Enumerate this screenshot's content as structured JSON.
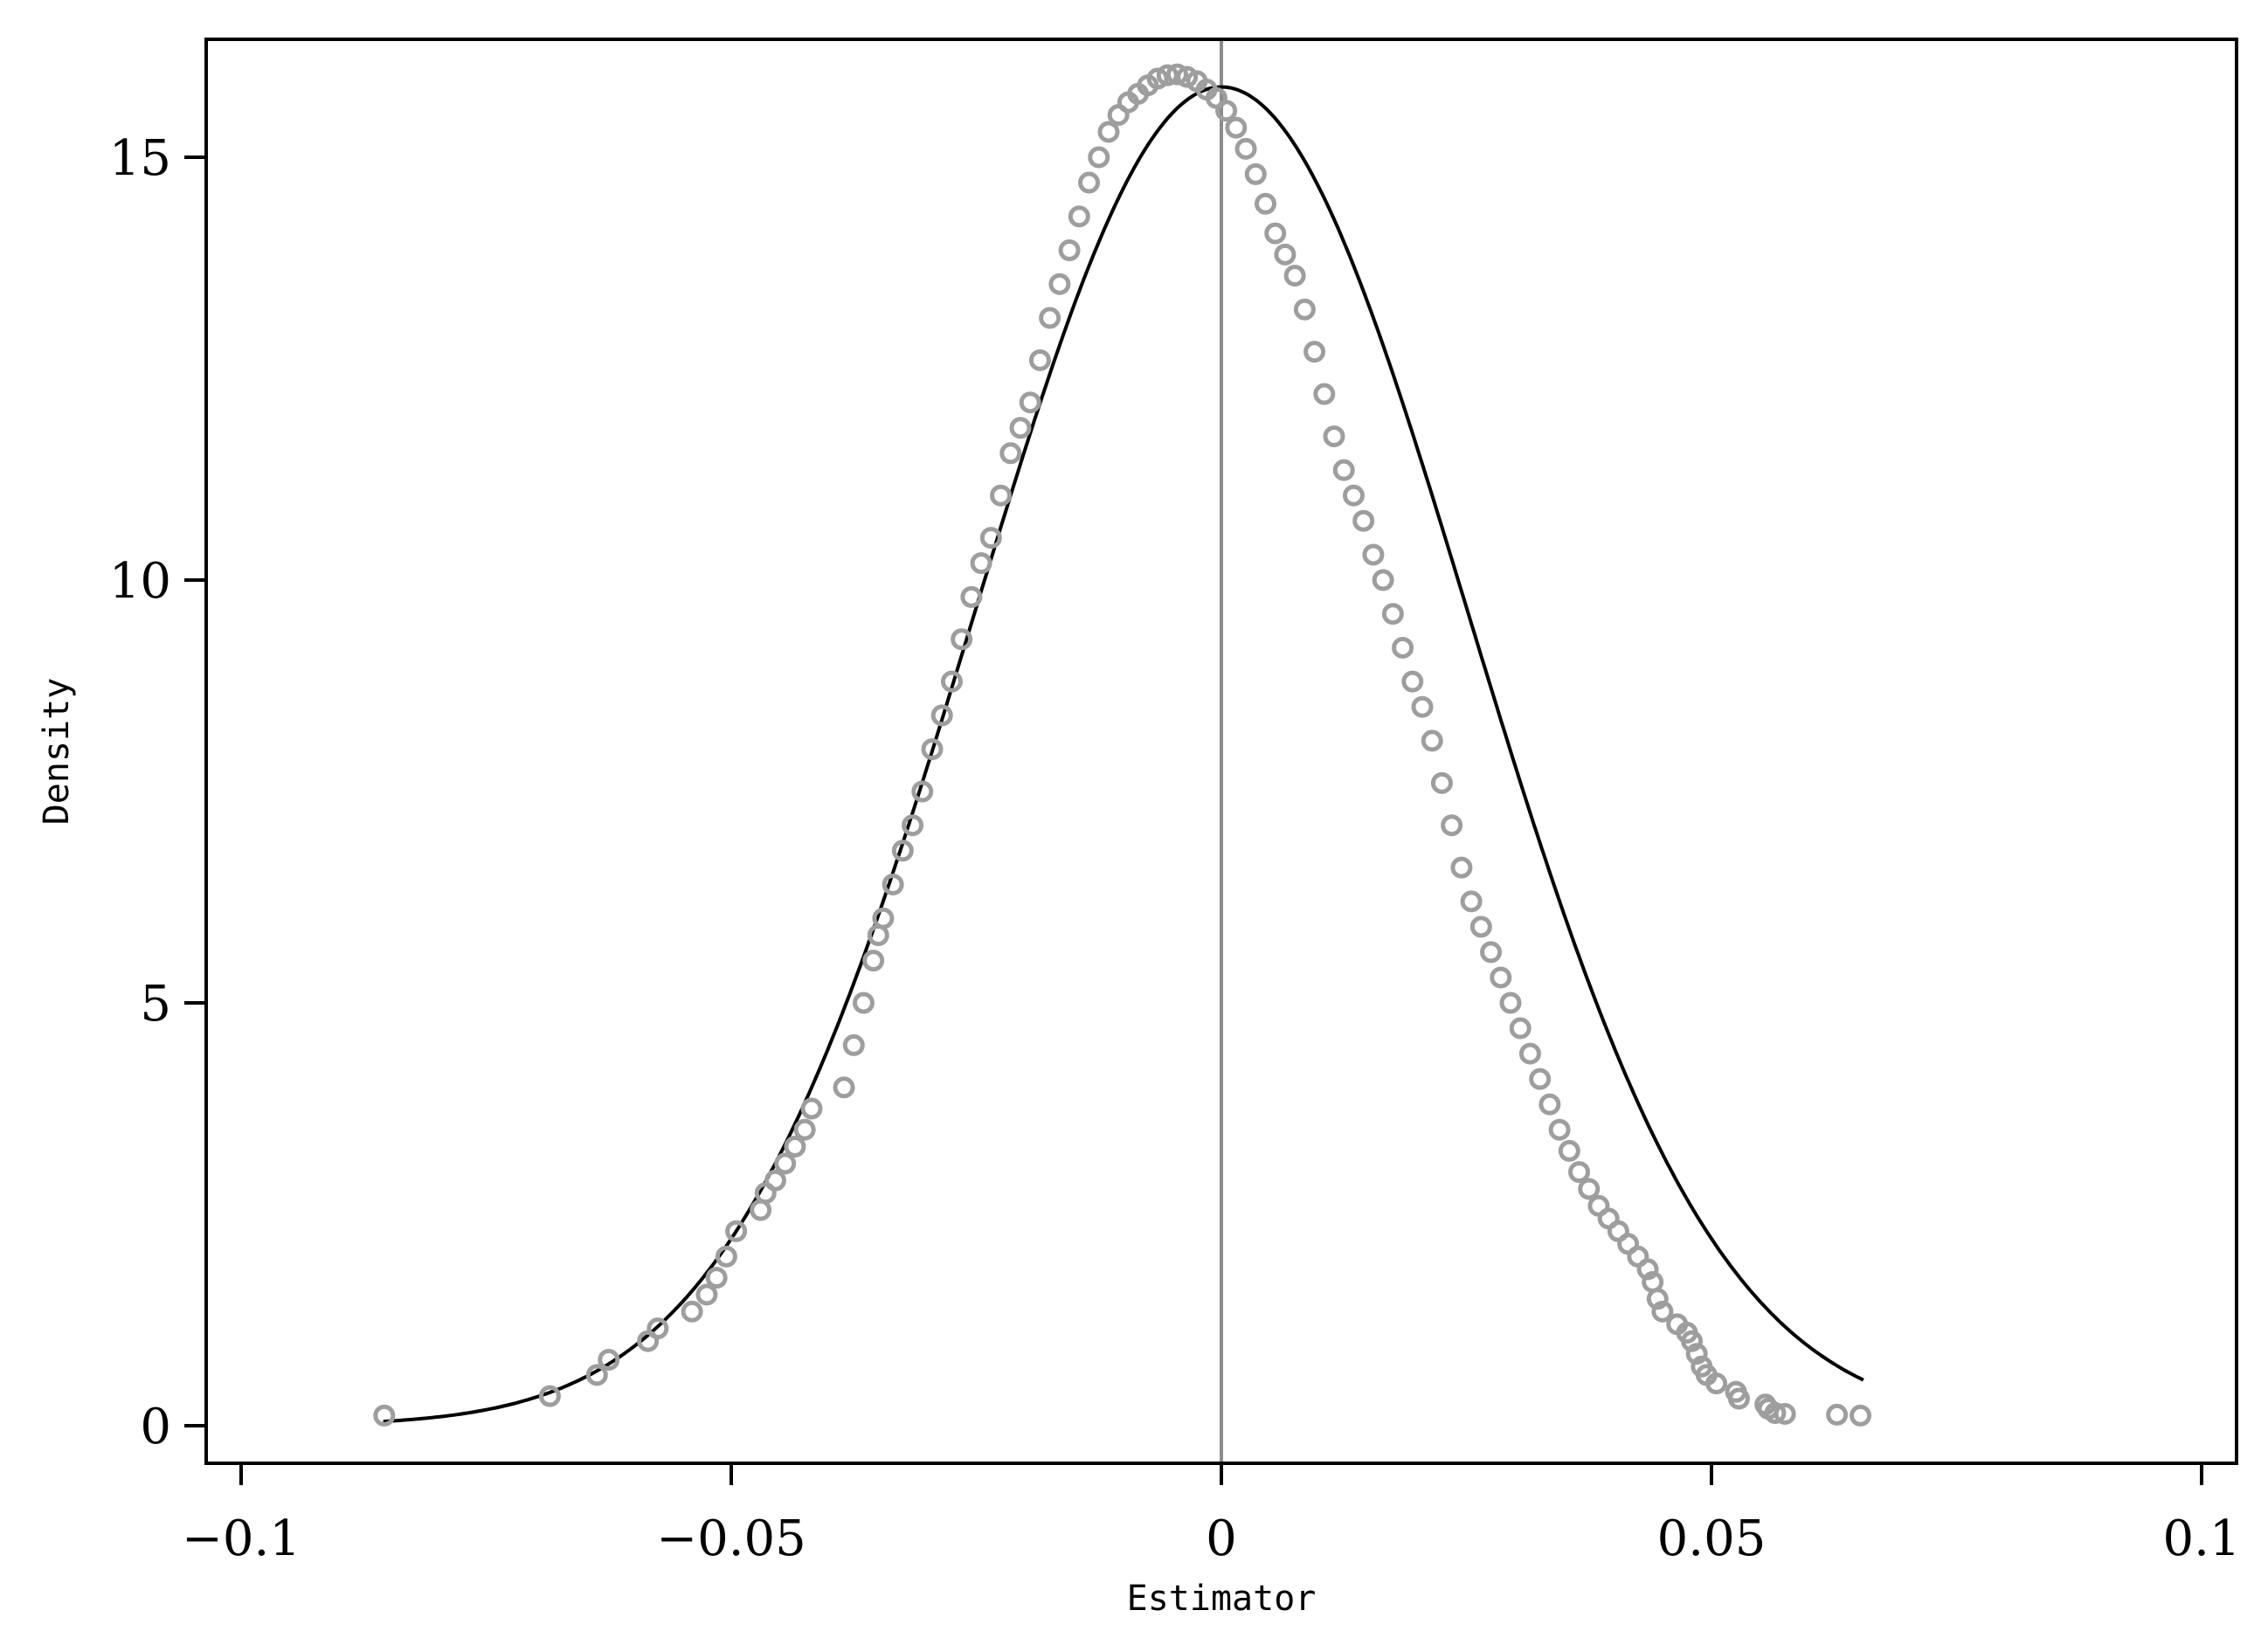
{
  "chart_data": {
    "type": "scatter",
    "xlabel": "Estimator",
    "ylabel": "Density",
    "xlim": [
      -0.1,
      0.1
    ],
    "ylim": [
      0,
      16
    ],
    "x_ticks": [
      -0.1,
      -0.05,
      0,
      0.05,
      0.1
    ],
    "x_tick_labels": [
      "−0.1",
      "−0.05",
      "0",
      "0.05",
      "0.1"
    ],
    "y_ticks": [
      0,
      5,
      10,
      15
    ],
    "y_tick_labels": [
      "0",
      "5",
      "10",
      "15"
    ],
    "reference_line_x": 0,
    "grid": false,
    "legend": "none",
    "colors": {
      "points": "#9e9e9e",
      "curve": "#000000",
      "reference_line": "#8c8c8c",
      "frame": "#000000"
    },
    "normal_curve": {
      "mean": 0,
      "sd": 0.0252,
      "x_range": [
        -0.0855,
        0.0655
      ]
    },
    "series": [
      {
        "type": "scatter",
        "x": [
          -0.0854,
          -0.0685,
          -0.0637,
          -0.0625,
          -0.0585,
          -0.0575,
          -0.054,
          -0.0525,
          -0.0515,
          -0.0505,
          -0.0495,
          -0.047,
          -0.0465,
          -0.0455,
          -0.0445,
          -0.0435,
          -0.0425,
          -0.0418,
          -0.0385,
          -0.0375,
          -0.0365,
          -0.0355,
          -0.035,
          -0.0345,
          -0.0335,
          -0.0325,
          -0.0315,
          -0.0305,
          -0.0295,
          -0.0285,
          -0.0275,
          -0.0265,
          -0.0255,
          -0.0245,
          -0.0235,
          -0.0225,
          -0.0215,
          -0.0205,
          -0.0195,
          -0.0185,
          -0.0175,
          -0.0165,
          -0.0155,
          -0.0145,
          -0.0135,
          -0.0125,
          -0.0115,
          -0.0105,
          -0.0095,
          -0.0085,
          -0.0075,
          -0.0065,
          -0.0055,
          -0.0045,
          -0.0035,
          -0.0025,
          -0.0015,
          -0.0005,
          0.0005,
          0.0015,
          0.0025,
          0.0035,
          0.0045,
          0.0055,
          0.0065,
          0.0075,
          0.0085,
          0.0095,
          0.0105,
          0.0115,
          0.0125,
          0.0135,
          0.0145,
          0.0155,
          0.0165,
          0.0175,
          0.0185,
          0.0195,
          0.0205,
          0.0215,
          0.0225,
          0.0235,
          0.0245,
          0.0255,
          0.0265,
          0.0275,
          0.0285,
          0.0295,
          0.0305,
          0.0315,
          0.0325,
          0.0335,
          0.0345,
          0.0355,
          0.0365,
          0.0375,
          0.0385,
          0.0395,
          0.0405,
          0.0415,
          0.0425,
          0.0435,
          0.044,
          0.0445,
          0.045,
          0.0465,
          0.0475,
          0.048,
          0.0485,
          0.049,
          0.0495,
          0.0505,
          0.0525,
          0.0528,
          0.0555,
          0.0558,
          0.0565,
          0.0575,
          0.0628,
          0.0652
        ],
        "y": [
          0.12,
          0.35,
          0.6,
          0.78,
          1.0,
          1.15,
          1.35,
          1.55,
          1.75,
          2.0,
          2.3,
          2.55,
          2.75,
          2.9,
          3.1,
          3.3,
          3.5,
          3.75,
          4.0,
          4.5,
          5.0,
          5.5,
          5.8,
          6.0,
          6.4,
          6.8,
          7.1,
          7.5,
          8.0,
          8.4,
          8.8,
          9.3,
          9.8,
          10.2,
          10.5,
          11.0,
          11.5,
          11.8,
          12.1,
          12.6,
          13.1,
          13.5,
          13.9,
          14.3,
          14.7,
          15.0,
          15.3,
          15.5,
          15.65,
          15.75,
          15.85,
          15.93,
          15.97,
          15.98,
          15.95,
          15.9,
          15.8,
          15.7,
          15.55,
          15.35,
          15.1,
          14.8,
          14.45,
          14.1,
          13.85,
          13.6,
          13.2,
          12.7,
          12.2,
          11.7,
          11.3,
          11.0,
          10.7,
          10.3,
          10.0,
          9.6,
          9.2,
          8.8,
          8.5,
          8.1,
          7.6,
          7.1,
          6.6,
          6.2,
          5.9,
          5.6,
          5.3,
          5.0,
          4.7,
          4.4,
          4.1,
          3.8,
          3.5,
          3.25,
          3.0,
          2.8,
          2.6,
          2.45,
          2.3,
          2.15,
          2.0,
          1.85,
          1.7,
          1.5,
          1.35,
          1.2,
          1.1,
          1.0,
          0.85,
          0.7,
          0.6,
          0.5,
          0.4,
          0.32,
          0.25,
          0.2,
          0.15,
          0.14,
          0.13,
          0.12
        ]
      }
    ]
  }
}
